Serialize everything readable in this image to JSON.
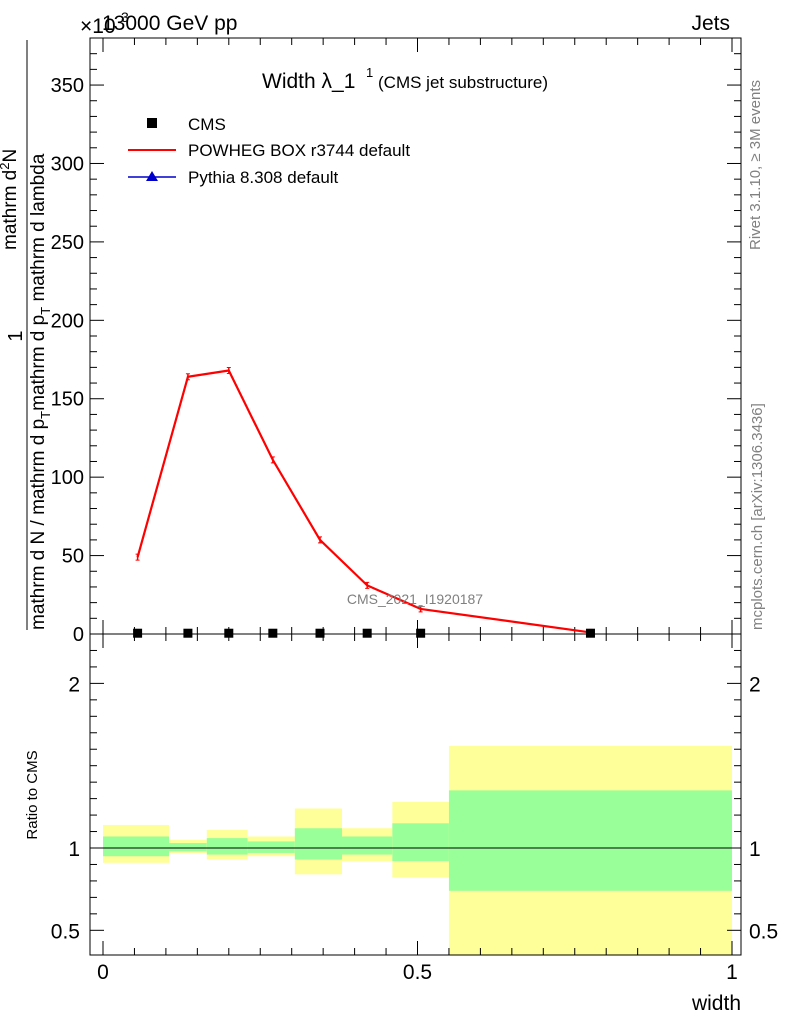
{
  "header": {
    "left_label": "13000 GeV pp",
    "right_label": "Jets",
    "exponent_label": "×10",
    "exponent_power": "3"
  },
  "side_labels": {
    "rivet": "Rivet 3.1.10, ≥ 3M events",
    "mcplots": "mcplots.cern.ch [arXiv:1306.3436]"
  },
  "analysis_label": "CMS_2021_I1920187",
  "colors": {
    "powheg": "#ff0000",
    "pythia": "#0000cc",
    "band_inner": "#99ff99",
    "band_outer": "#ffff99"
  },
  "chart_data": [
    {
      "type": "line",
      "panel": "main",
      "title": "Width λ_1",
      "title_sup": "1",
      "subtitle": "(CMS jet substructure)",
      "ylabel_main": "1",
      "ylabel_den": "mathrm d N / mathrm d p_T mathrm d p_T mathrm d lambda",
      "ylabel_num": "mathrm d²N",
      "ylabel_a": "mathrm d N / mathrm d p",
      "ylabel_b": "T",
      "ylabel_c": "mathrm d p",
      "ylabel_d": "T",
      "ylabel_e": " mathrm d lambda",
      "ylabel_num_a": "mathrm d",
      "ylabel_num_b": "2",
      "ylabel_num_c": "N",
      "xlim": [
        0,
        1
      ],
      "ylim": [
        0,
        380
      ],
      "y_ticks": [
        0,
        50,
        100,
        150,
        200,
        250,
        300,
        350
      ],
      "y_tick_labels": [
        "0",
        "50",
        "100",
        "150",
        "200",
        "250",
        "300",
        "350"
      ],
      "legend": [
        "CMS",
        "POWHEG BOX r3744 default",
        "Pythia 8.308 default"
      ],
      "legend_position": "top-left",
      "series": [
        {
          "name": "CMS",
          "marker": "square",
          "x": [
            0.055,
            0.135,
            0.2,
            0.27,
            0.345,
            0.42,
            0.505,
            0.775
          ],
          "y": [
            0.5,
            0.5,
            0.5,
            0.5,
            0.5,
            0.5,
            0.5,
            0.5
          ]
        },
        {
          "name": "POWHEG BOX r3744 default",
          "x": [
            0.055,
            0.135,
            0.2,
            0.27,
            0.345,
            0.42,
            0.505,
            0.775
          ],
          "y": [
            49,
            164,
            168,
            111,
            60,
            31,
            16,
            1
          ]
        }
      ]
    },
    {
      "type": "area",
      "panel": "ratio",
      "ylabel": "Ratio to CMS",
      "xlabel": "width",
      "xlim": [
        0,
        1
      ],
      "ylim": [
        0.35,
        2.3
      ],
      "x_ticks": [
        0,
        0.5,
        1
      ],
      "x_tick_labels": [
        "0",
        "0.5",
        "1"
      ],
      "y_ticks": [
        0.5,
        1,
        2
      ],
      "y_tick_labels": [
        "0.5",
        "1",
        "2"
      ],
      "bins": [
        {
          "x0": 0.0,
          "x1": 0.105,
          "inner": [
            0.95,
            1.07
          ],
          "outer": [
            0.91,
            1.14
          ]
        },
        {
          "x0": 0.105,
          "x1": 0.165,
          "inner": [
            0.98,
            1.03
          ],
          "outer": [
            0.97,
            1.05
          ]
        },
        {
          "x0": 0.165,
          "x1": 0.23,
          "inner": [
            0.96,
            1.06
          ],
          "outer": [
            0.93,
            1.11
          ]
        },
        {
          "x0": 0.23,
          "x1": 0.305,
          "inner": [
            0.97,
            1.04
          ],
          "outer": [
            0.95,
            1.07
          ]
        },
        {
          "x0": 0.305,
          "x1": 0.38,
          "inner": [
            0.93,
            1.12
          ],
          "outer": [
            0.84,
            1.24
          ]
        },
        {
          "x0": 0.38,
          "x1": 0.46,
          "inner": [
            0.96,
            1.07
          ],
          "outer": [
            0.92,
            1.12
          ]
        },
        {
          "x0": 0.46,
          "x1": 0.55,
          "inner": [
            0.92,
            1.15
          ],
          "outer": [
            0.82,
            1.28
          ]
        },
        {
          "x0": 0.55,
          "x1": 1.0,
          "inner": [
            0.74,
            1.35
          ],
          "outer": [
            0.35,
            1.62
          ]
        }
      ]
    }
  ]
}
